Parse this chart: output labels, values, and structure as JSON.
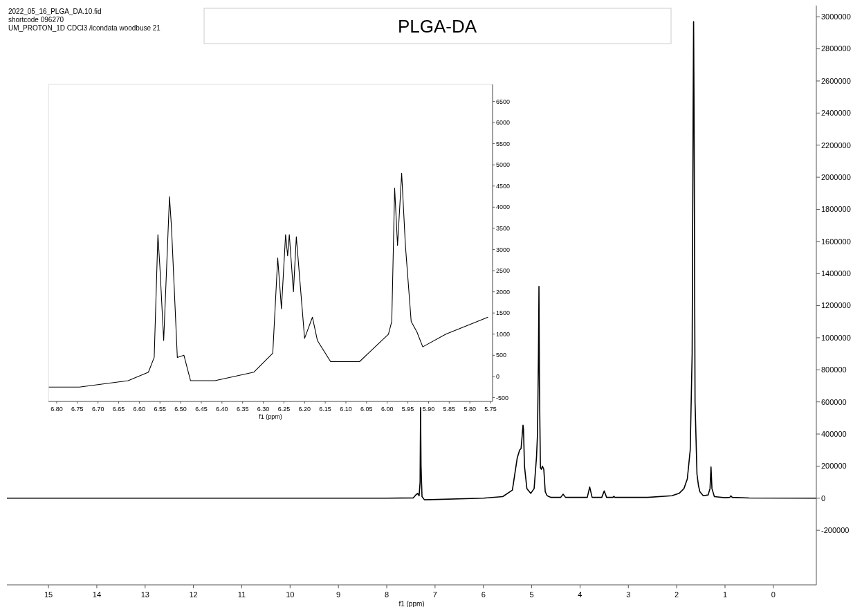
{
  "chart_data": [
    {
      "type": "line",
      "title": "PLGA-DA",
      "xlabel": "f1 (ppm)",
      "annotations": [
        "2022_05_16_PLGA_DA.10.fid",
        "shortcode 096270",
        "UM_PROTON_1D CDCl3 /icondata woodbuse 21"
      ],
      "x": [
        15.86,
        8.0,
        7.45,
        7.4,
        7.36,
        7.33,
        7.31,
        7.3,
        7.29,
        7.27,
        7.22,
        6.0,
        5.6,
        5.4,
        5.3,
        5.25,
        5.22,
        5.2,
        5.18,
        5.17,
        5.15,
        5.1,
        5.02,
        4.95,
        4.9,
        4.88,
        4.86,
        4.85,
        4.84,
        4.82,
        4.8,
        4.78,
        4.75,
        4.72,
        4.68,
        4.6,
        4.4,
        4.35,
        4.3,
        3.85,
        3.8,
        3.75,
        3.55,
        3.5,
        3.45,
        3.32,
        3.3,
        3.28,
        2.6,
        2.1,
        1.95,
        1.85,
        1.78,
        1.72,
        1.68,
        1.66,
        1.65,
        1.64,
        1.62,
        1.58,
        1.55,
        1.52,
        1.45,
        1.35,
        1.31,
        1.29,
        1.27,
        1.22,
        1.0,
        0.9,
        0.88,
        0.85,
        0.5,
        -0.89
      ],
      "series": [
        {
          "color": "#000000",
          "values": [
            0,
            0,
            2000,
            20000,
            30000,
            15000,
            100000,
            565000,
            200000,
            10000,
            -10000,
            0,
            10000,
            50000,
            250000,
            300000,
            310000,
            380000,
            455000,
            430000,
            200000,
            60000,
            30000,
            60000,
            260000,
            400000,
            900000,
            1320000,
            700000,
            190000,
            180000,
            200000,
            180000,
            40000,
            15000,
            5000,
            5000,
            25000,
            5000,
            5000,
            70000,
            5000,
            5000,
            45000,
            5000,
            5000,
            12000,
            5000,
            5000,
            15000,
            30000,
            60000,
            120000,
            300000,
            900000,
            2400000,
            2970000,
            2400000,
            600000,
            150000,
            80000,
            40000,
            15000,
            20000,
            60000,
            195000,
            60000,
            10000,
            3000,
            5000,
            15000,
            5000,
            1000,
            0
          ]
        }
      ],
      "xlim": [
        15.86,
        -0.89
      ],
      "ylim": [
        -540000,
        3070000
      ],
      "xticks": [
        15,
        14,
        13,
        12,
        11,
        10,
        9,
        8,
        7,
        6,
        5,
        4,
        3,
        2,
        1,
        0
      ],
      "yticks": [
        -200000,
        0,
        200000,
        400000,
        600000,
        800000,
        1000000,
        1200000,
        1400000,
        1600000,
        1800000,
        2000000,
        2200000,
        2400000,
        2600000,
        2800000,
        3000000
      ],
      "grid": false,
      "marker": "none",
      "line_style": "solid"
    },
    {
      "type": "line",
      "xlabel": "f1 (ppm)",
      "x": [
        6.819,
        6.745,
        6.627,
        6.578,
        6.564,
        6.555,
        6.55,
        6.541,
        6.527,
        6.522,
        6.508,
        6.492,
        6.476,
        6.417,
        6.323,
        6.277,
        6.265,
        6.256,
        6.246,
        6.241,
        6.237,
        6.227,
        6.22,
        6.2,
        6.181,
        6.169,
        6.137,
        6.067,
        5.997,
        5.989,
        5.982,
        5.975,
        5.965,
        5.956,
        5.942,
        5.928,
        5.914,
        5.858,
        5.756
      ],
      "series": [
        {
          "color": "#000000",
          "values": [
            -250,
            -250,
            -100,
            100,
            450,
            3350,
            2550,
            850,
            4250,
            3500,
            450,
            500,
            -100,
            -100,
            100,
            550,
            2800,
            1600,
            3350,
            2850,
            3350,
            2000,
            3300,
            900,
            1400,
            850,
            350,
            350,
            1000,
            1300,
            4450,
            3100,
            4800,
            3100,
            1300,
            1050,
            700,
            1000,
            1400
          ]
        }
      ],
      "xlim": [
        6.82,
        5.745
      ],
      "ylim": [
        -590,
        6900
      ],
      "xticks": [
        {
          "value": 6.8,
          "label": "6.80"
        },
        {
          "value": 6.75,
          "label": "6.75"
        },
        {
          "value": 6.7,
          "label": "6.70"
        },
        {
          "value": 6.65,
          "label": "6.65"
        },
        {
          "value": 6.6,
          "label": "6.60"
        },
        {
          "value": 6.55,
          "label": "6.55"
        },
        {
          "value": 6.5,
          "label": "6.50"
        },
        {
          "value": 6.45,
          "label": "6.45"
        },
        {
          "value": 6.4,
          "label": "6.40"
        },
        {
          "value": 6.35,
          "label": "6.35"
        },
        {
          "value": 6.3,
          "label": "6.30"
        },
        {
          "value": 6.25,
          "label": "6.25"
        },
        {
          "value": 6.2,
          "label": "6.20"
        },
        {
          "value": 6.15,
          "label": "6.15"
        },
        {
          "value": 6.1,
          "label": "6.10"
        },
        {
          "value": 6.05,
          "label": "6.05"
        },
        {
          "value": 6.0,
          "label": "6.00"
        },
        {
          "value": 5.95,
          "label": "5.95"
        },
        {
          "value": 5.9,
          "label": "5.90"
        },
        {
          "value": 5.85,
          "label": "5.85"
        },
        {
          "value": 5.8,
          "label": "5.80"
        },
        {
          "value": 5.75,
          "label": "5.75"
        }
      ],
      "yticks": [
        -500,
        0,
        500,
        1000,
        1500,
        2000,
        2500,
        3000,
        3500,
        4000,
        4500,
        5000,
        5500,
        6000,
        6500
      ],
      "grid": false,
      "marker": "none",
      "line_style": "solid"
    }
  ]
}
